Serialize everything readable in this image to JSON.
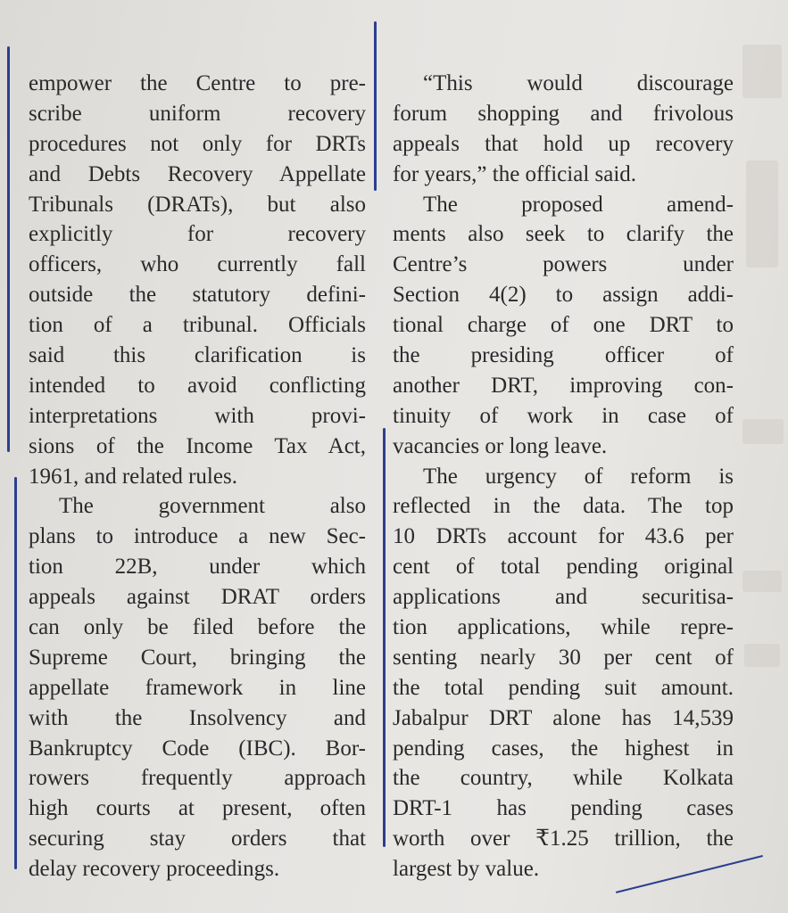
{
  "article": {
    "columns": [
      {
        "id": "left",
        "lines": [
          {
            "text": "empower the Centre to pre-"
          },
          {
            "text": "scribe uniform recovery"
          },
          {
            "text": "procedures not only for DRTs"
          },
          {
            "text": "and Debts Recovery Appellate"
          },
          {
            "text": "Tribunals (DRATs), but also"
          },
          {
            "text": "explicitly for recovery"
          },
          {
            "text": "officers, who currently fall"
          },
          {
            "text": "outside the statutory defini-"
          },
          {
            "text": "tion of a tribunal. Officials"
          },
          {
            "text": "said this clarification is"
          },
          {
            "text": "intended to avoid conflicting"
          },
          {
            "text": "interpretations with provi-"
          },
          {
            "text": "sions of the Income Tax Act,"
          },
          {
            "text": "1961, and related rules.",
            "last": true
          },
          {
            "text": "The government also",
            "indent": true
          },
          {
            "text": "plans to introduce a new Sec-"
          },
          {
            "text": "tion 22B, under which"
          },
          {
            "text": "appeals against DRAT orders"
          },
          {
            "text": "can only be filed before the"
          },
          {
            "text": "Supreme Court, bringing the"
          },
          {
            "text": "appellate framework in line"
          },
          {
            "text": "with the Insolvency and"
          },
          {
            "text": "Bankruptcy Code (IBC). Bor-"
          },
          {
            "text": "rowers frequently approach"
          },
          {
            "text": "high courts at present, often"
          },
          {
            "text": "securing stay orders that"
          },
          {
            "text": "delay recovery proceedings.",
            "last": true
          }
        ]
      },
      {
        "id": "right",
        "lines": [
          {
            "text": "“This would discourage",
            "indent": true
          },
          {
            "text": "forum shopping and frivolous"
          },
          {
            "text": "appeals that hold up recovery"
          },
          {
            "text": "for years,” the official said.",
            "last": true
          },
          {
            "text": "The proposed amend-",
            "indent": true
          },
          {
            "text": "ments also seek to clarify the"
          },
          {
            "text": "Centre’s powers under"
          },
          {
            "text": "Section 4(2) to assign addi-"
          },
          {
            "text": "tional charge of one DRT to"
          },
          {
            "text": "the presiding officer of"
          },
          {
            "text": "another DRT, improving con-"
          },
          {
            "text": "tinuity of work in case of"
          },
          {
            "text": "vacancies or long leave.",
            "last": true
          },
          {
            "text": "The urgency of reform is",
            "indent": true
          },
          {
            "text": "reflected in the data. The top"
          },
          {
            "text": "10 DRTs account for 43.6 per"
          },
          {
            "text": "cent of total pending original"
          },
          {
            "text": "applications and securitisa-"
          },
          {
            "text": "tion applications, while repre-"
          },
          {
            "text": "senting nearly 30 per cent of"
          },
          {
            "text": "the total pending suit amount."
          },
          {
            "text": "Jabalpur DRT alone has 14,539"
          },
          {
            "text": "pending cases, the highest in"
          },
          {
            "text": "the country, while Kolkata"
          },
          {
            "text": "DRT-1 has pending cases"
          },
          {
            "text": "worth over ₹1.25 trillion, the"
          },
          {
            "text": "largest by value.",
            "last": true
          }
        ]
      }
    ]
  },
  "colors": {
    "paper": "#e6e4e1",
    "ink_text": "#2a2a2c",
    "pen_marks": "#2b3f8f"
  }
}
